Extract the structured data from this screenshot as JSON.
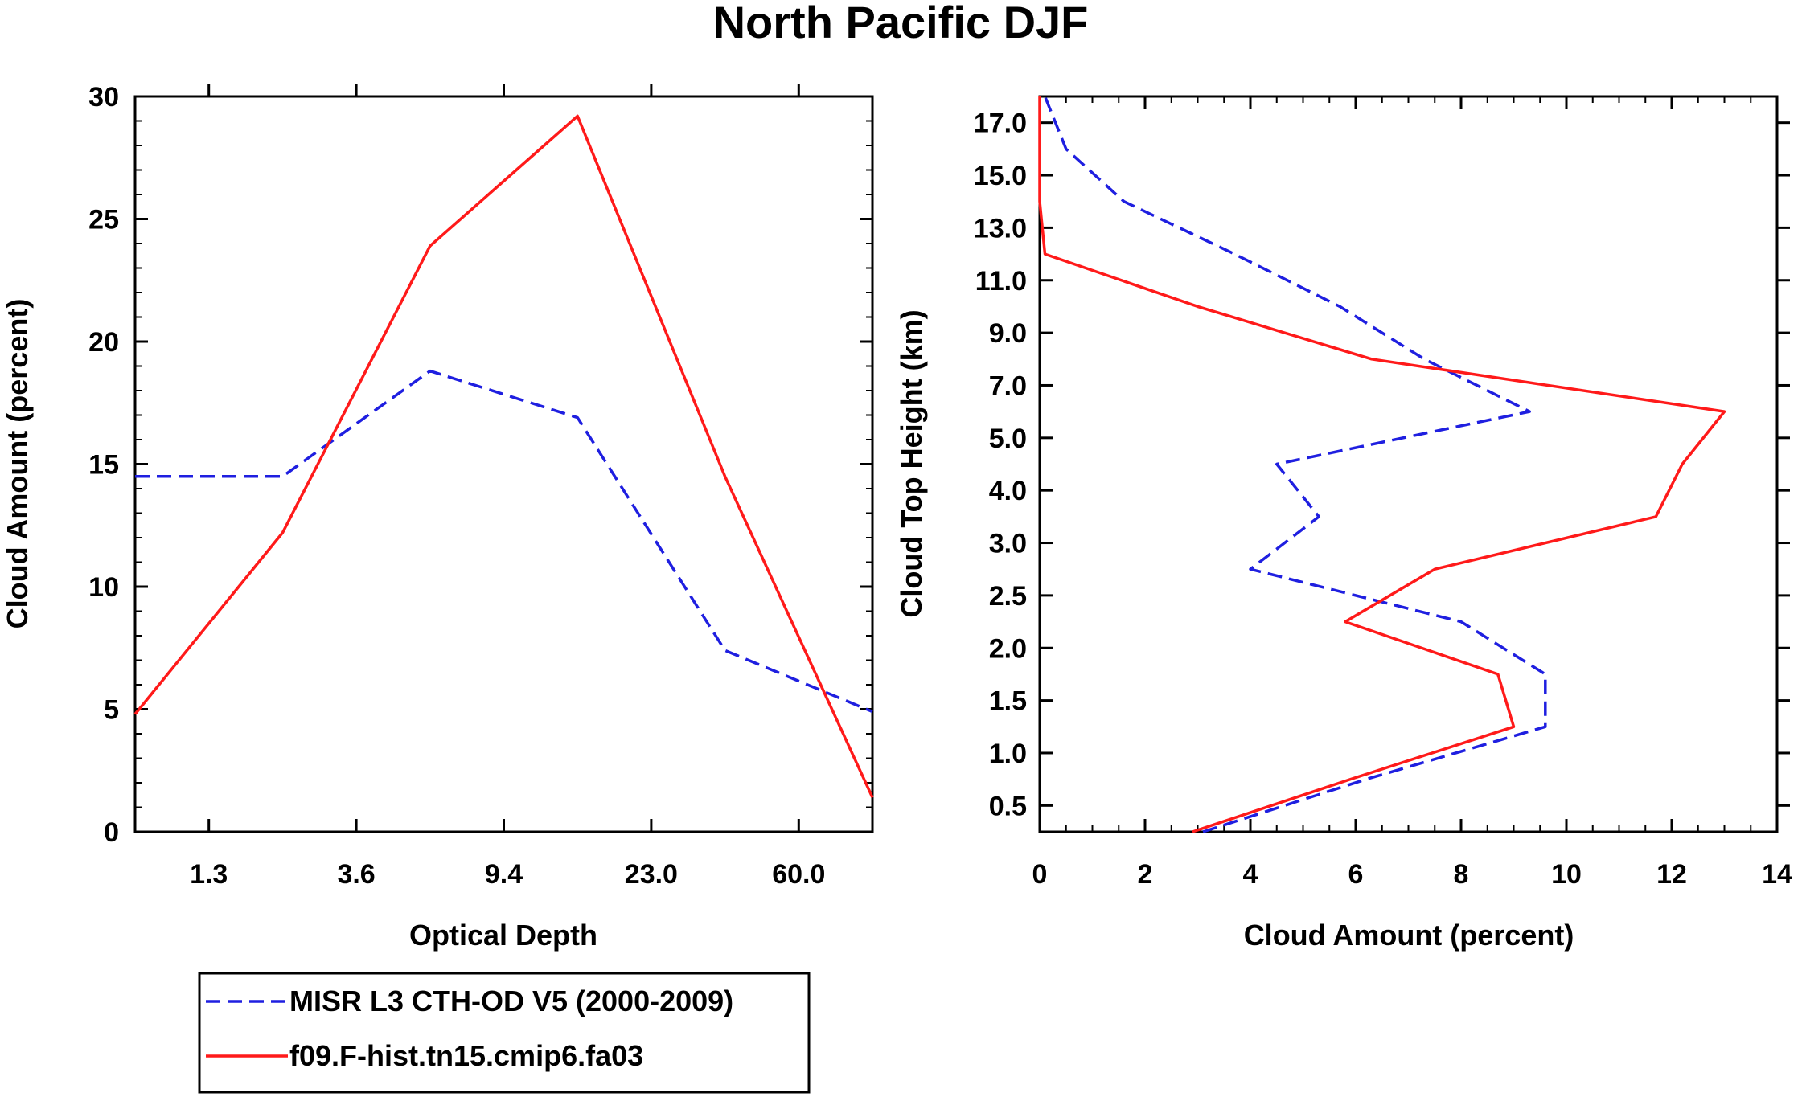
{
  "title": "North Pacific DJF",
  "colors": {
    "misr": "#1f1fe0",
    "model": "#ff1a1a",
    "axis": "#000000"
  },
  "chart_data": [
    {
      "type": "line",
      "title": "",
      "xlabel": "Optical Depth",
      "ylabel": "Cloud Amount (percent)",
      "x_tick_labels": [
        "1.3",
        "3.6",
        "9.4",
        "23.0",
        "60.0"
      ],
      "x_bins": [
        0,
        1,
        2,
        3,
        4,
        5
      ],
      "xlim": [
        0,
        5
      ],
      "ylim": [
        0,
        30
      ],
      "y_ticks": [
        0,
        5,
        10,
        15,
        20,
        25,
        30
      ],
      "series": [
        {
          "name": "MISR L3 CTH-OD V5 (2000-2009)",
          "style": "dashed",
          "values": [
            14.5,
            14.5,
            18.8,
            16.9,
            7.4,
            4.9
          ]
        },
        {
          "name": "f09.F-hist.tn15.cmip6.fa03",
          "style": "solid",
          "values": [
            4.8,
            12.2,
            23.9,
            29.2,
            14.5,
            1.4
          ]
        }
      ]
    },
    {
      "type": "line",
      "title": "",
      "xlabel": "Cloud Amount (percent)",
      "ylabel": "Cloud Top Height (km)",
      "xlim": [
        0,
        14
      ],
      "x_ticks": [
        0,
        2,
        4,
        6,
        8,
        10,
        12,
        14
      ],
      "y_tick_labels": [
        "0.5",
        "1.0",
        "1.5",
        "2.0",
        "2.5",
        "3.0",
        "4.0",
        "5.0",
        "7.0",
        "9.0",
        "11.0",
        "13.0",
        "15.0",
        "17.0"
      ],
      "y_levels": [
        0,
        1,
        2,
        3,
        4,
        5,
        6,
        7,
        8,
        9,
        10,
        11,
        12,
        13,
        14
      ],
      "series": [
        {
          "name": "MISR L3 CTH-OD V5 (2000-2009)",
          "style": "dashed",
          "values": [
            3.1,
            6.2,
            9.6,
            9.6,
            8.0,
            4.0,
            5.3,
            4.5,
            9.3,
            7.3,
            5.7,
            3.7,
            1.6,
            0.5,
            0.1
          ]
        },
        {
          "name": "f09.F-hist.tn15.cmip6.fa03",
          "style": "solid",
          "values": [
            2.9,
            5.9,
            9.0,
            8.7,
            5.8,
            7.5,
            11.7,
            12.2,
            13.0,
            6.3,
            3.0,
            0.1,
            0.0,
            0.0,
            0.0
          ]
        }
      ]
    }
  ],
  "legend": [
    {
      "label": "MISR L3 CTH-OD V5 (2000-2009)",
      "style": "dashed"
    },
    {
      "label": "f09.F-hist.tn15.cmip6.fa03",
      "style": "solid"
    }
  ]
}
